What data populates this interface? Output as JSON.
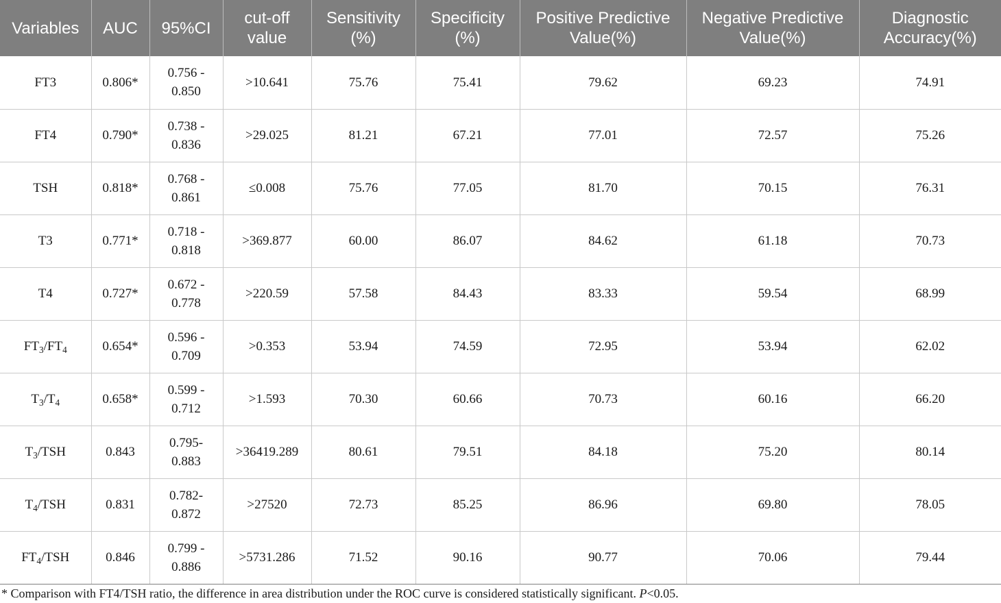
{
  "table": {
    "headers": [
      "Variables",
      "AUC",
      "95%CI",
      "cut-off value",
      "Sensitivity (%)",
      "Specificity (%)",
      "Positive Predictive Value(%)",
      "Negative Predictive Value(%)",
      "Diagnostic Accuracy(%)"
    ],
    "rows": [
      {
        "var_a": "FT3",
        "var_sub_a": "",
        "var_b": "",
        "var_sub_b": "",
        "var_c": "",
        "auc": "0.806*",
        "ci_1": "0.756 -",
        "ci_2": "0.850",
        "cutoff": ">10.641",
        "sens": "75.76",
        "spec": "75.41",
        "ppv": "79.62",
        "npv": "69.23",
        "acc": "74.91"
      },
      {
        "var_a": "FT4",
        "var_sub_a": "",
        "var_b": "",
        "var_sub_b": "",
        "var_c": "",
        "auc": "0.790*",
        "ci_1": "0.738 -",
        "ci_2": "0.836",
        "cutoff": ">29.025",
        "sens": "81.21",
        "spec": "67.21",
        "ppv": "77.01",
        "npv": "72.57",
        "acc": "75.26"
      },
      {
        "var_a": "TSH",
        "var_sub_a": "",
        "var_b": "",
        "var_sub_b": "",
        "var_c": "",
        "auc": "0.818*",
        "ci_1": "0.768 -",
        "ci_2": "0.861",
        "cutoff": "≤0.008",
        "sens": "75.76",
        "spec": "77.05",
        "ppv": "81.70",
        "npv": "70.15",
        "acc": "76.31"
      },
      {
        "var_a": "T3",
        "var_sub_a": "",
        "var_b": "",
        "var_sub_b": "",
        "var_c": "",
        "auc": "0.771*",
        "ci_1": "0.718 -",
        "ci_2": "0.818",
        "cutoff": ">369.877",
        "sens": "60.00",
        "spec": "86.07",
        "ppv": "84.62",
        "npv": "61.18",
        "acc": "70.73"
      },
      {
        "var_a": "T4",
        "var_sub_a": "",
        "var_b": "",
        "var_sub_b": "",
        "var_c": "",
        "auc": "0.727*",
        "ci_1": "0.672 -",
        "ci_2": "0.778",
        "cutoff": ">220.59",
        "sens": "57.58",
        "spec": "84.43",
        "ppv": "83.33",
        "npv": "59.54",
        "acc": "68.99"
      },
      {
        "var_a": "FT",
        "var_sub_a": "3",
        "var_b": "/FT",
        "var_sub_b": "4",
        "var_c": "",
        "auc": "0.654*",
        "ci_1": "0.596 -",
        "ci_2": "0.709",
        "cutoff": ">0.353",
        "sens": "53.94",
        "spec": "74.59",
        "ppv": "72.95",
        "npv": "53.94",
        "acc": "62.02"
      },
      {
        "var_a": "T",
        "var_sub_a": "3",
        "var_b": "/T",
        "var_sub_b": "4",
        "var_c": "",
        "auc": "0.658*",
        "ci_1": "0.599 -",
        "ci_2": "0.712",
        "cutoff": ">1.593",
        "sens": "70.30",
        "spec": "60.66",
        "ppv": "70.73",
        "npv": "60.16",
        "acc": "66.20"
      },
      {
        "var_a": "T",
        "var_sub_a": "3",
        "var_b": "/TSH",
        "var_sub_b": "",
        "var_c": "",
        "auc": "0.843",
        "ci_1": "0.795-",
        "ci_2": "0.883",
        "cutoff": ">36419.289",
        "sens": "80.61",
        "spec": "79.51",
        "ppv": "84.18",
        "npv": "75.20",
        "acc": "80.14"
      },
      {
        "var_a": "T",
        "var_sub_a": "4",
        "var_b": "/TSH",
        "var_sub_b": "",
        "var_c": "",
        "auc": "0.831",
        "ci_1": "0.782-",
        "ci_2": "0.872",
        "cutoff": ">27520",
        "sens": "72.73",
        "spec": "85.25",
        "ppv": "86.96",
        "npv": "69.80",
        "acc": "78.05"
      },
      {
        "var_a": "FT",
        "var_sub_a": "4",
        "var_b": "/TSH",
        "var_sub_b": "",
        "var_c": "",
        "auc": "0.846",
        "ci_1": "0.799 -",
        "ci_2": "0.886",
        "cutoff": ">5731.286",
        "sens": "71.52",
        "spec": "90.16",
        "ppv": "90.77",
        "npv": "70.06",
        "acc": "79.44"
      }
    ]
  },
  "footnote": {
    "text": "* Comparison with FT4/TSH ratio, the difference in area distribution under the ROC curve is considered statistically significant. ",
    "p_label": "P",
    "p_value": "<0.05."
  }
}
